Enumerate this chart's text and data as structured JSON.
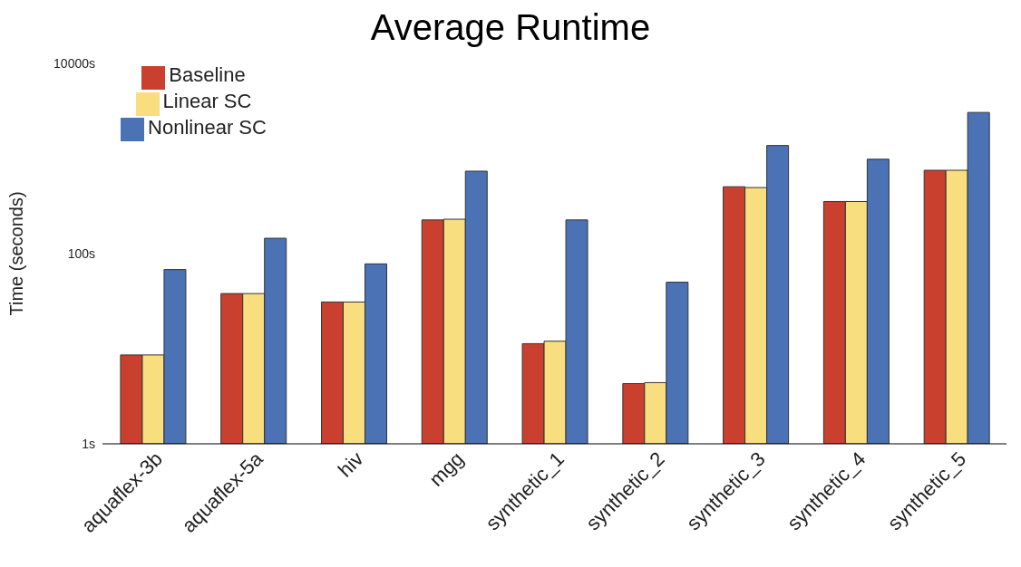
{
  "chart_data": {
    "type": "bar",
    "title": "Average Runtime",
    "ylabel": "Time (seconds)",
    "categories": [
      "aquaflex-3b",
      "aquaflex-5a",
      "hiv",
      "mgg",
      "synthetic_1",
      "synthetic_2",
      "synthetic_3",
      "synthetic_4",
      "synthetic_5"
    ],
    "series": [
      {
        "name": "Baseline",
        "color": "#c9402f",
        "values": [
          8.6,
          38,
          31,
          226,
          11.3,
          4.3,
          505,
          353,
          752
        ]
      },
      {
        "name": "Linear SC",
        "color": "#f9de7f",
        "values": [
          8.6,
          38,
          31,
          230,
          12,
          4.4,
          495,
          353,
          752
        ]
      },
      {
        "name": "Nonlinear SC",
        "color": "#4a72b5",
        "values": [
          68,
          145,
          78,
          736,
          226,
          50,
          1370,
          983,
          3050
        ]
      }
    ],
    "log": "y",
    "ylim": [
      1,
      10000
    ],
    "yticks": [
      {
        "value": 1,
        "label": "1s"
      },
      {
        "value": 100,
        "label": "100s"
      },
      {
        "value": 10000,
        "label": "10000s"
      }
    ],
    "grid": false,
    "legend": "top left"
  }
}
